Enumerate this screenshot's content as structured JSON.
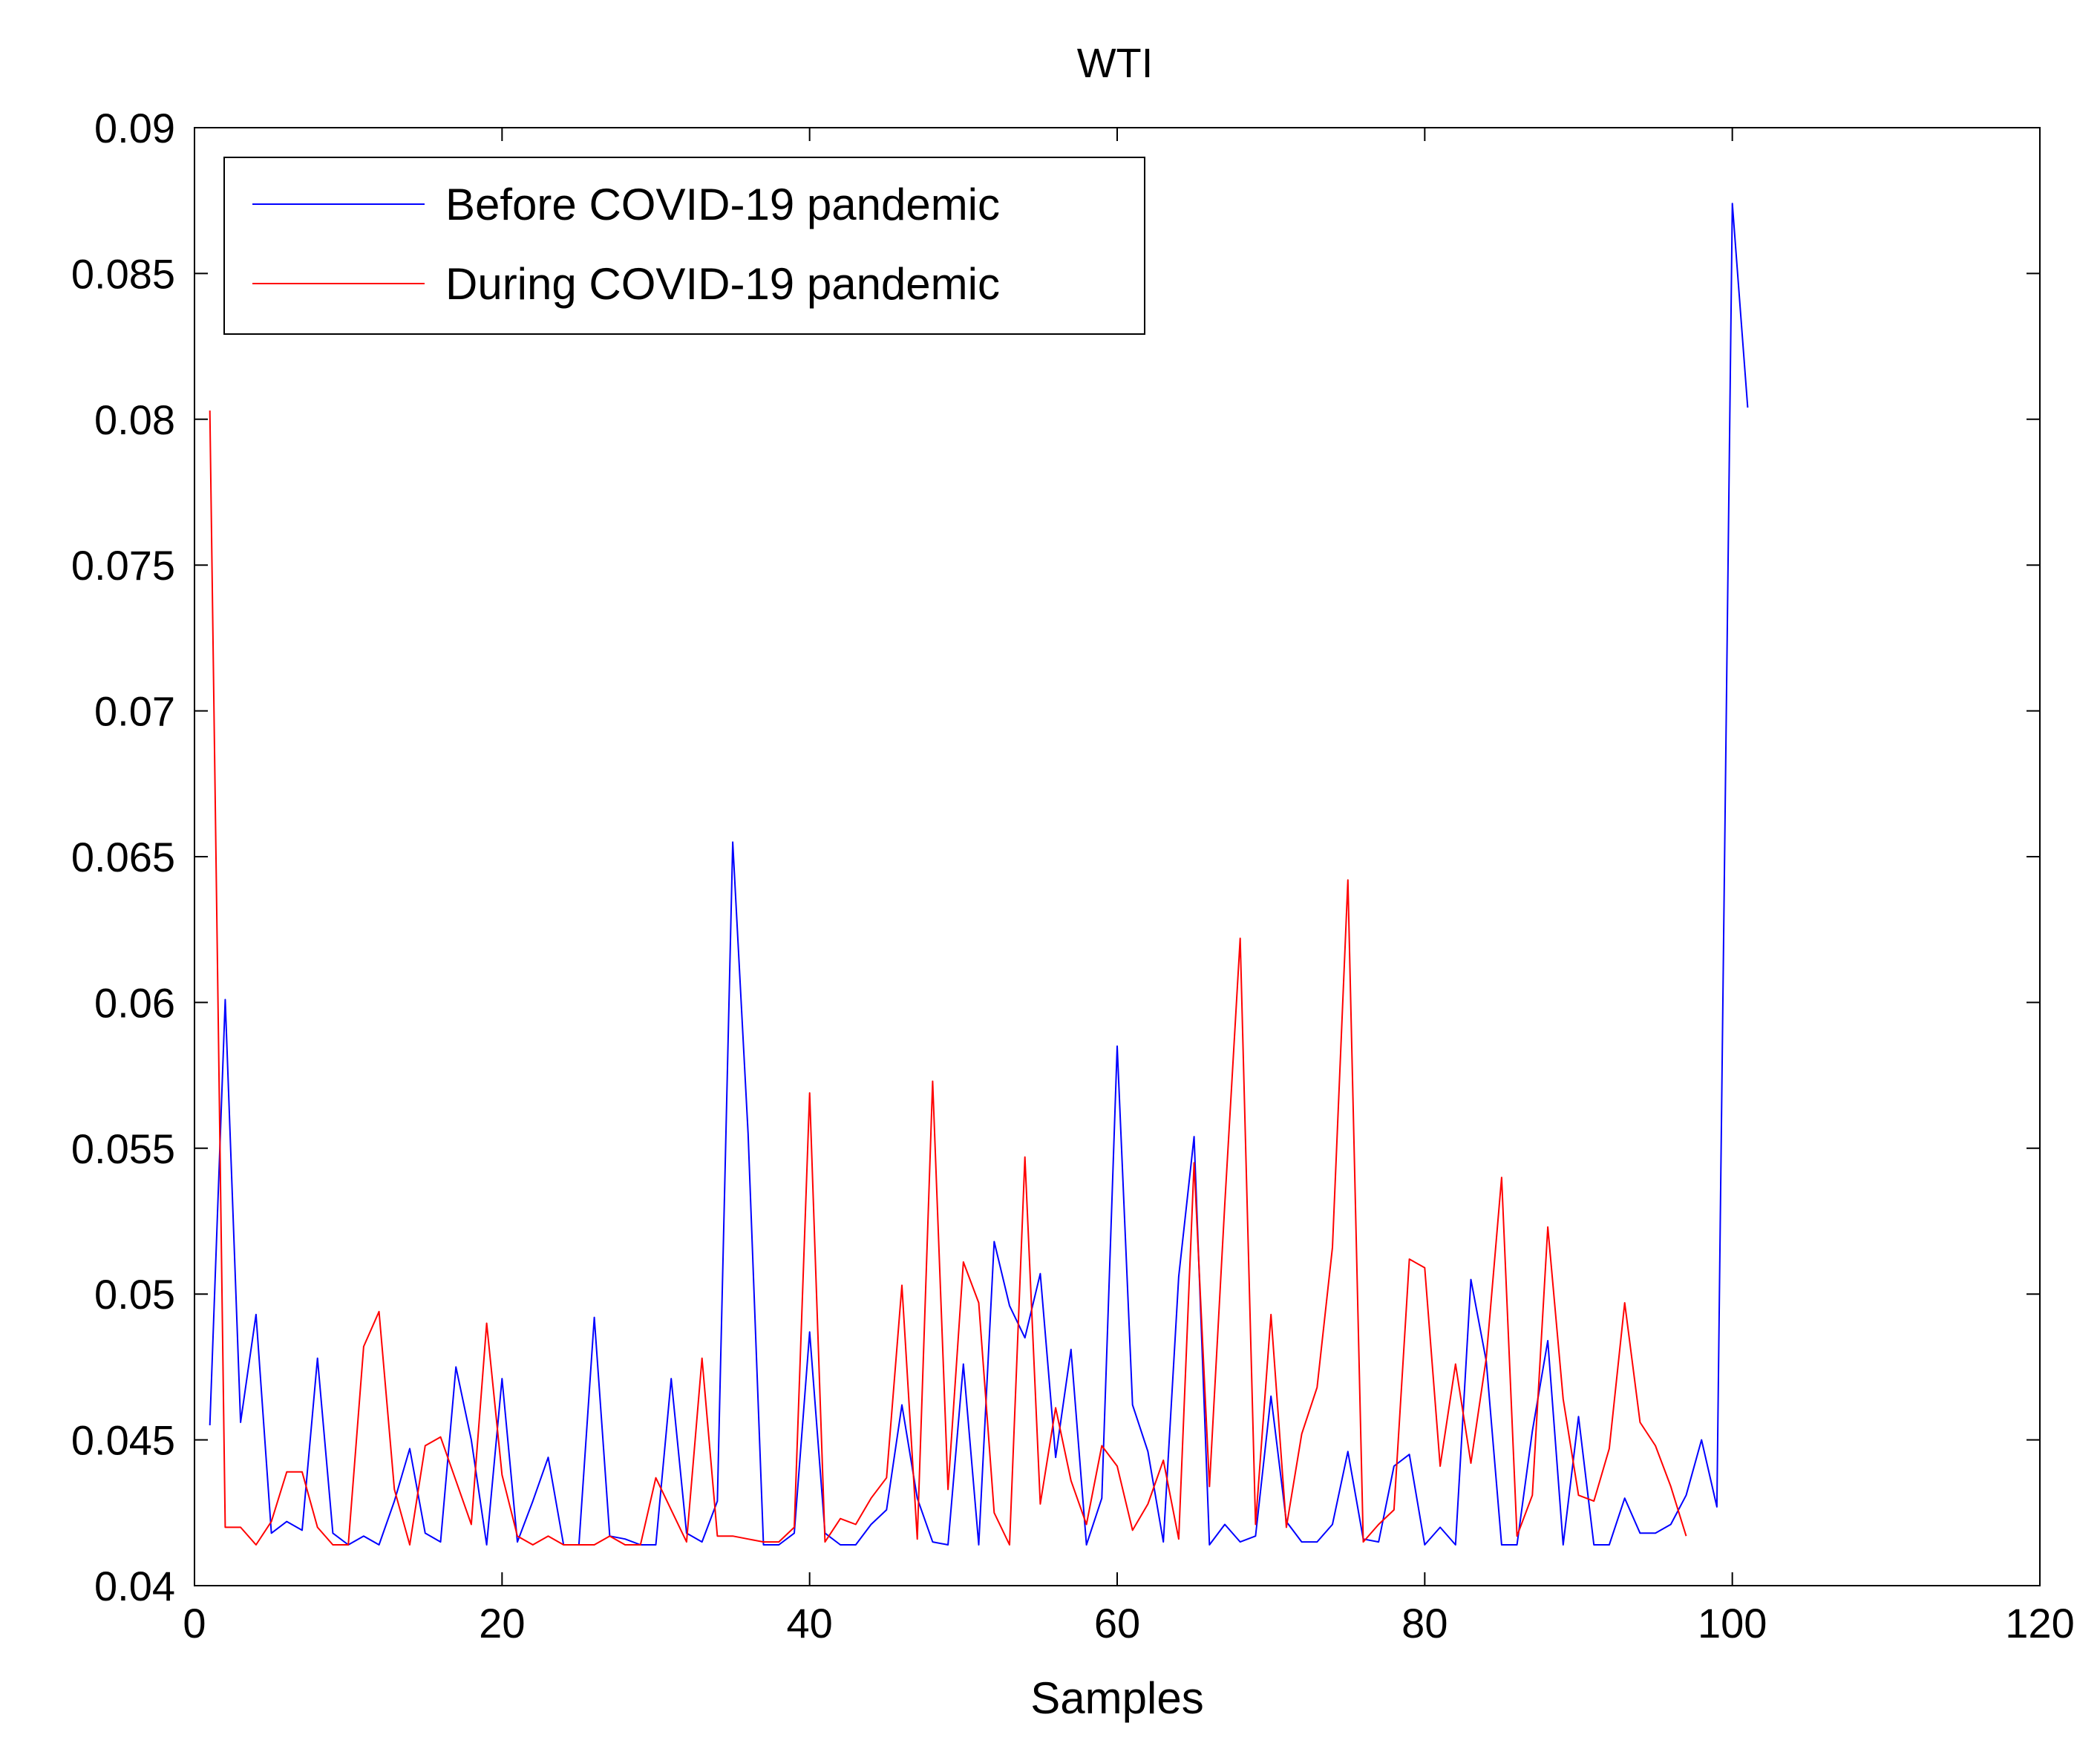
{
  "chart_data": {
    "type": "line",
    "title": "WTI",
    "xlabel": "Samples",
    "ylabel": "",
    "xlim": [
      0,
      120
    ],
    "ylim": [
      0.04,
      0.09
    ],
    "xticks": [
      0,
      20,
      40,
      60,
      80,
      100,
      120
    ],
    "xtick_labels": [
      "0",
      "20",
      "40",
      "60",
      "80",
      "100",
      "120"
    ],
    "yticks": [
      0.04,
      0.045,
      0.05,
      0.055,
      0.06,
      0.065,
      0.07,
      0.075,
      0.08,
      0.085,
      0.09
    ],
    "ytick_labels": [
      "0.04",
      "0.045",
      "0.05",
      "0.055",
      "0.06",
      "0.065",
      "0.07",
      "0.075",
      "0.08",
      "0.085",
      "0.09"
    ],
    "grid": false,
    "legend_position": "top-left",
    "series": [
      {
        "name": "Before COVID-19 pandemic",
        "color": "#0000ff",
        "x": [
          1,
          2,
          3,
          4,
          5,
          6,
          7,
          8,
          9,
          10,
          11,
          12,
          13,
          14,
          15,
          16,
          17,
          18,
          19,
          20,
          21,
          22,
          23,
          24,
          25,
          26,
          27,
          28,
          29,
          30,
          31,
          32,
          33,
          34,
          35,
          36,
          37,
          38,
          39,
          40,
          41,
          42,
          43,
          44,
          45,
          46,
          47,
          48,
          49,
          50,
          51,
          52,
          53,
          54,
          55,
          56,
          57,
          58,
          59,
          60,
          61,
          62,
          63,
          64,
          65,
          66,
          67,
          68,
          69,
          70,
          71,
          72,
          73,
          74,
          75,
          76,
          77,
          78,
          79,
          80,
          81,
          82,
          83,
          84,
          85,
          86,
          87,
          88,
          89,
          90,
          91,
          92,
          93,
          94,
          95,
          96,
          97,
          98,
          99,
          100,
          101
        ],
        "values": [
          0.0455,
          0.0601,
          0.0456,
          0.0493,
          0.0418,
          0.0422,
          0.0419,
          0.0478,
          0.0418,
          0.0414,
          0.0417,
          0.0414,
          0.0429,
          0.0447,
          0.0418,
          0.0415,
          0.0475,
          0.045,
          0.0414,
          0.0471,
          0.0415,
          0.0429,
          0.0444,
          0.0414,
          0.0414,
          0.0492,
          0.0417,
          0.0416,
          0.0414,
          0.0414,
          0.0471,
          0.0418,
          0.0415,
          0.0429,
          0.0655,
          0.0555,
          0.0414,
          0.0414,
          0.0418,
          0.0487,
          0.0418,
          0.0414,
          0.0414,
          0.0421,
          0.0426,
          0.0462,
          0.043,
          0.0415,
          0.0414,
          0.0476,
          0.0414,
          0.0518,
          0.0496,
          0.0485,
          0.0507,
          0.0444,
          0.0481,
          0.0414,
          0.043,
          0.0585,
          0.0462,
          0.0446,
          0.0415,
          0.0506,
          0.0554,
          0.0414,
          0.0421,
          0.0415,
          0.0417,
          0.0465,
          0.0422,
          0.0415,
          0.0415,
          0.0421,
          0.0446,
          0.0416,
          0.0415,
          0.0441,
          0.0445,
          0.0414,
          0.042,
          0.0414,
          0.0505,
          0.0477,
          0.0414,
          0.0414,
          0.0453,
          0.0484,
          0.0414,
          0.0458,
          0.0414,
          0.0414,
          0.043,
          0.0418,
          0.0418,
          0.0421,
          0.0431,
          0.045,
          0.0427,
          0.0874,
          0.0804
        ]
      },
      {
        "name": "During COVID-19 pandemic",
        "color": "#ff0000",
        "x": [
          1,
          2,
          3,
          4,
          5,
          6,
          7,
          8,
          9,
          10,
          11,
          12,
          13,
          14,
          15,
          16,
          17,
          18,
          19,
          20,
          21,
          22,
          23,
          24,
          25,
          26,
          27,
          28,
          29,
          30,
          31,
          32,
          33,
          34,
          35,
          36,
          37,
          38,
          39,
          40,
          41,
          42,
          43,
          44,
          45,
          46,
          47,
          48,
          49,
          50,
          51,
          52,
          53,
          54,
          55,
          56,
          57,
          58,
          59,
          60,
          61,
          62,
          63,
          64,
          65,
          66,
          67,
          68,
          69,
          70,
          71,
          72,
          73,
          74,
          75,
          76,
          77,
          78,
          79,
          80,
          81,
          82,
          83,
          84,
          85,
          86,
          87,
          88,
          89,
          90,
          91,
          92,
          93,
          94,
          95,
          96,
          97
        ],
        "values": [
          0.0803,
          0.042,
          0.042,
          0.0414,
          0.0422,
          0.0439,
          0.0439,
          0.042,
          0.0414,
          0.0414,
          0.0482,
          0.0494,
          0.0433,
          0.0414,
          0.0448,
          0.0451,
          0.0436,
          0.0421,
          0.049,
          0.0438,
          0.0417,
          0.0414,
          0.0417,
          0.0414,
          0.0414,
          0.0414,
          0.0417,
          0.0414,
          0.0414,
          0.0437,
          0.0426,
          0.0415,
          0.0478,
          0.0417,
          0.0417,
          0.0416,
          0.0415,
          0.0415,
          0.042,
          0.0569,
          0.0415,
          0.0423,
          0.0421,
          0.043,
          0.0437,
          0.0503,
          0.0416,
          0.0573,
          0.0433,
          0.0511,
          0.0497,
          0.0425,
          0.0414,
          0.0547,
          0.0428,
          0.0461,
          0.0436,
          0.0421,
          0.0448,
          0.0441,
          0.0419,
          0.0428,
          0.0443,
          0.0416,
          0.0545,
          0.0434,
          0.0531,
          0.0622,
          0.0421,
          0.0493,
          0.042,
          0.0452,
          0.0468,
          0.0516,
          0.0642,
          0.0415,
          0.0421,
          0.0426,
          0.0512,
          0.0509,
          0.0441,
          0.0476,
          0.0442,
          0.0478,
          0.054,
          0.0417,
          0.0431,
          0.0523,
          0.0464,
          0.0431,
          0.0429,
          0.0447,
          0.0497,
          0.0456,
          0.0448,
          0.0434,
          0.0417
        ]
      }
    ]
  }
}
